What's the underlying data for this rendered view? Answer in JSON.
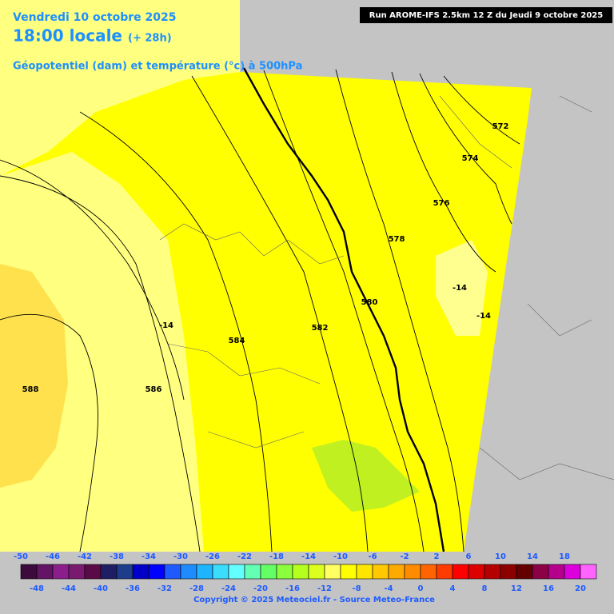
{
  "header": {
    "date": "Vendredi 10 octobre 2025",
    "time": "18:00 locale",
    "lead": "(+ 28h)",
    "field": "Géopotentiel (dam) et température (°c) à 500hPa",
    "run": "Run AROME-IFS 2.5km 12 Z du Jeudi 9 octobre 2025"
  },
  "map": {
    "contour_labels": [
      572,
      574,
      576,
      578,
      580,
      582,
      584,
      586,
      588,
      -14,
      -14,
      -14
    ]
  },
  "colorbar": {
    "top_labels": [
      -50,
      -46,
      -42,
      -38,
      -34,
      -30,
      -26,
      -22,
      -18,
      -14,
      -10,
      -6,
      -2,
      2,
      6,
      10,
      14,
      18
    ],
    "bottom_labels": [
      -48,
      -44,
      -40,
      -36,
      -32,
      -28,
      -24,
      -20,
      -16,
      -12,
      -8,
      -4,
      0,
      4,
      8,
      12,
      16,
      20
    ],
    "colors": [
      "#3c0a3c",
      "#641464",
      "#8c1e8c",
      "#7a1a6e",
      "#5a0a46",
      "#1e1e64",
      "#1e3c8c",
      "#0000c8",
      "#0000ff",
      "#1e5aff",
      "#1e8cff",
      "#1eb4ff",
      "#3cdcff",
      "#64ffff",
      "#64ffb4",
      "#64ff64",
      "#8cff3c",
      "#b4ff1e",
      "#dcff1e",
      "#ffff64",
      "#ffff00",
      "#ffe600",
      "#ffc800",
      "#ffaa00",
      "#ff8c00",
      "#ff6400",
      "#ff3c00",
      "#ff0000",
      "#dc0000",
      "#b40000",
      "#8c0000",
      "#640000",
      "#8c0046",
      "#b4008c",
      "#dc00dc",
      "#ff64ff"
    ]
  },
  "footer": {
    "copyright": "Copyright © 2025 Meteociel.fr - Source Meteo-France"
  }
}
